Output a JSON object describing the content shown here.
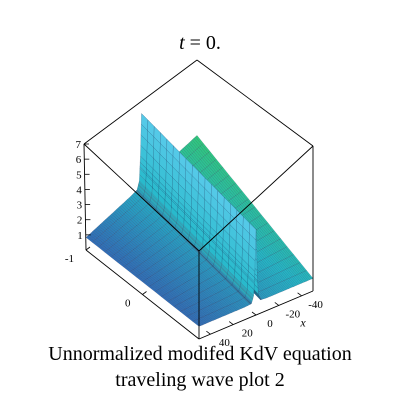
{
  "figure": {
    "time_label_var": "t",
    "time_label_rest": " = 0.",
    "caption_line1": "Unnormalized modifed KdV equation",
    "caption_line2": "traveling wave plot 2"
  },
  "chart_data": {
    "type": "surface3d",
    "title": "t = 0.",
    "xlabel": "x",
    "ylabel": "",
    "zlabel": "",
    "z_ticks": [
      "1",
      "2",
      "3",
      "4",
      "5",
      "6",
      "7"
    ],
    "x_ticks": [
      "-40",
      "-20",
      "0",
      "20",
      "40"
    ],
    "y_ticks": [
      "-1",
      "0"
    ],
    "z_range": [
      0,
      7
    ],
    "x_range": [
      -50,
      50
    ],
    "y_range": [
      -1,
      1
    ],
    "surface": {
      "description_values": "traveling kink/soliton wave",
      "x": [
        -50,
        -40,
        -30,
        -20,
        -10,
        -4,
        -2,
        -1,
        0,
        1,
        2,
        4,
        10,
        20,
        30,
        40,
        50
      ],
      "z": [
        1.0,
        1.0,
        1.0,
        1.0,
        1.0,
        1.05,
        1.6,
        3.5,
        6.8,
        3.5,
        1.6,
        1.05,
        1.0,
        1.0,
        1.0,
        1.0,
        1.0
      ]
    },
    "colors": {
      "low": "#3a2fa8",
      "mid": "#22b8c8",
      "high": "#3ad83a",
      "box": "#000000"
    }
  }
}
